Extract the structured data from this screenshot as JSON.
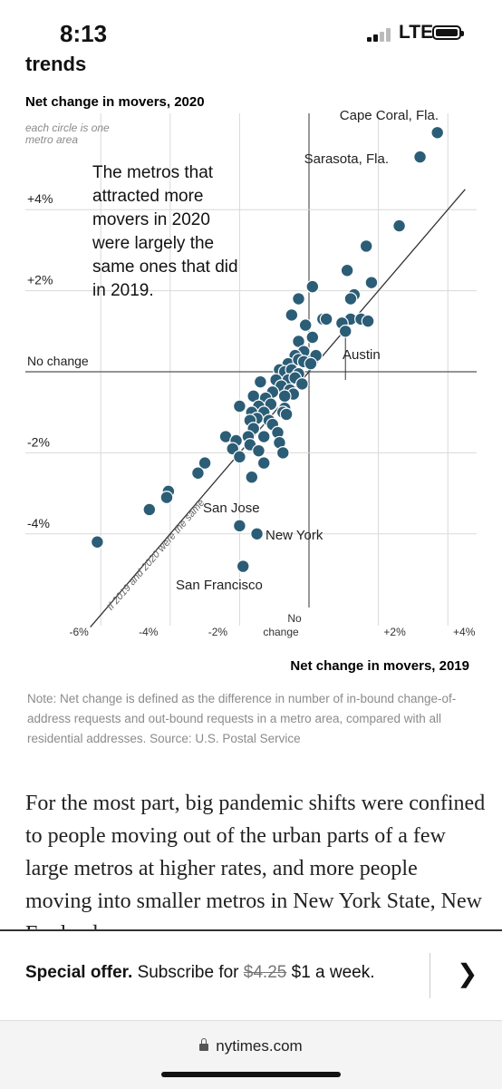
{
  "status_bar": {
    "time": "8:13",
    "network": "LTE"
  },
  "article": {
    "partial_heading": "trends",
    "note": "Note: Net change is defined as the difference in number of in-bound change-of-address requests and out-bound requests in a metro area, compared with all residential addresses. Source: U.S. Postal Service",
    "body_text": "For the most part, big pandemic shifts were confined to people moving out of the urban parts of a few large metros at higher rates, and more people moving into smaller metros in New York State, New England"
  },
  "offer": {
    "prefix": "Special offer.",
    "middle": "Subscribe for",
    "old_price": "$4.25",
    "new_price": "$1 a week."
  },
  "browser": {
    "url": "nytimes.com"
  },
  "colors": {
    "dot": "#2c5d76",
    "dot_stroke": "#ffffff",
    "grid": "#d9d9d9",
    "axis": "#555555"
  },
  "chart_data": {
    "type": "scatter",
    "title": "Net change in movers, 2020",
    "subtitle": "each circle is one metro area",
    "xlabel": "Net change in movers, 2019",
    "ylabel": "Net change in movers, 2020",
    "xlim": [
      -6.3,
      4.5
    ],
    "ylim": [
      -6.3,
      6.3
    ],
    "x_ticks": [
      "-6%",
      "-4%",
      "-2%",
      "No change",
      "+2%",
      "+4%"
    ],
    "y_ticks": [
      "+4%",
      "+2%",
      "No change",
      "-2%",
      "-4%"
    ],
    "reference_line_label": "If 2019 and 2020 were the same",
    "annotation": "The metros that attracted more movers in 2020 were largely the same ones that did in 2019.",
    "labels": {
      "cape_coral": "Cape Coral, Fla.",
      "sarasota": "Sarasota, Fla.",
      "austin": "Austin",
      "san_jose": "San Jose",
      "new_york": "New York",
      "san_francisco": "San Francisco"
    },
    "points": [
      {
        "x": 3.7,
        "y": 5.9,
        "label": "Cape Coral, Fla."
      },
      {
        "x": 3.2,
        "y": 5.3,
        "label": "Sarasota, Fla."
      },
      {
        "x": 2.6,
        "y": 3.6
      },
      {
        "x": 1.65,
        "y": 3.1
      },
      {
        "x": 1.1,
        "y": 2.5
      },
      {
        "x": 1.8,
        "y": 2.2
      },
      {
        "x": 1.3,
        "y": 1.9
      },
      {
        "x": 1.2,
        "y": 1.8
      },
      {
        "x": 0.1,
        "y": 2.1
      },
      {
        "x": -0.3,
        "y": 1.8
      },
      {
        "x": -0.5,
        "y": 1.4
      },
      {
        "x": 0.4,
        "y": 1.3
      },
      {
        "x": 0.5,
        "y": 1.3
      },
      {
        "x": 1.2,
        "y": 1.3
      },
      {
        "x": 1.5,
        "y": 1.3
      },
      {
        "x": 1.7,
        "y": 1.25
      },
      {
        "x": 0.95,
        "y": 1.2
      },
      {
        "x": -0.1,
        "y": 1.15
      },
      {
        "x": 1.05,
        "y": 1.0,
        "label": "Austin"
      },
      {
        "x": -0.3,
        "y": 0.75
      },
      {
        "x": 0.1,
        "y": 0.85
      },
      {
        "x": -0.15,
        "y": 0.5
      },
      {
        "x": -0.4,
        "y": 0.4
      },
      {
        "x": 0.2,
        "y": 0.4
      },
      {
        "x": -0.6,
        "y": 0.2
      },
      {
        "x": -0.3,
        "y": 0.3
      },
      {
        "x": -0.15,
        "y": 0.25
      },
      {
        "x": 0.05,
        "y": 0.2
      },
      {
        "x": -0.85,
        "y": 0.05
      },
      {
        "x": -0.7,
        "y": 0.0
      },
      {
        "x": -0.5,
        "y": 0.05
      },
      {
        "x": -0.3,
        "y": -0.05
      },
      {
        "x": -0.95,
        "y": -0.2
      },
      {
        "x": -0.6,
        "y": -0.2
      },
      {
        "x": -0.4,
        "y": -0.15
      },
      {
        "x": -0.2,
        "y": -0.3
      },
      {
        "x": -0.8,
        "y": -0.35
      },
      {
        "x": -0.55,
        "y": -0.45
      },
      {
        "x": -1.05,
        "y": -0.5
      },
      {
        "x": -0.45,
        "y": -0.55
      },
      {
        "x": -0.7,
        "y": -0.6
      },
      {
        "x": -1.4,
        "y": -0.25
      },
      {
        "x": -1.6,
        "y": -0.6
      },
      {
        "x": -1.25,
        "y": -0.65
      },
      {
        "x": -1.1,
        "y": -0.8
      },
      {
        "x": -1.45,
        "y": -0.85
      },
      {
        "x": -2.0,
        "y": -0.85
      },
      {
        "x": -0.7,
        "y": -0.9
      },
      {
        "x": -1.65,
        "y": -1.0
      },
      {
        "x": -1.3,
        "y": -1.0
      },
      {
        "x": -1.15,
        "y": -1.2
      },
      {
        "x": -1.5,
        "y": -1.15
      },
      {
        "x": -0.75,
        "y": -1.0
      },
      {
        "x": -1.7,
        "y": -1.2
      },
      {
        "x": -0.65,
        "y": -1.05
      },
      {
        "x": -1.05,
        "y": -1.3
      },
      {
        "x": -1.6,
        "y": -1.4
      },
      {
        "x": -0.9,
        "y": -1.5
      },
      {
        "x": -1.3,
        "y": -1.6
      },
      {
        "x": -2.4,
        "y": -1.6
      },
      {
        "x": -2.1,
        "y": -1.7
      },
      {
        "x": -1.75,
        "y": -1.6
      },
      {
        "x": -2.2,
        "y": -1.9
      },
      {
        "x": -1.7,
        "y": -1.8
      },
      {
        "x": -1.45,
        "y": -1.95
      },
      {
        "x": -2.0,
        "y": -2.1
      },
      {
        "x": -0.85,
        "y": -1.75
      },
      {
        "x": -0.75,
        "y": -2.0
      },
      {
        "x": -1.3,
        "y": -2.25
      },
      {
        "x": -3.0,
        "y": -2.25
      },
      {
        "x": -3.2,
        "y": -2.5
      },
      {
        "x": -1.65,
        "y": -2.6
      },
      {
        "x": -4.05,
        "y": -2.95
      },
      {
        "x": -4.1,
        "y": -3.1
      },
      {
        "x": -4.6,
        "y": -3.4
      },
      {
        "x": -6.1,
        "y": -4.2
      },
      {
        "x": -2.0,
        "y": -3.8,
        "label": "San Jose"
      },
      {
        "x": -1.5,
        "y": -4.0,
        "label": "New York"
      },
      {
        "x": -1.9,
        "y": -4.8,
        "label": "San Francisco"
      }
    ],
    "grid": true
  }
}
